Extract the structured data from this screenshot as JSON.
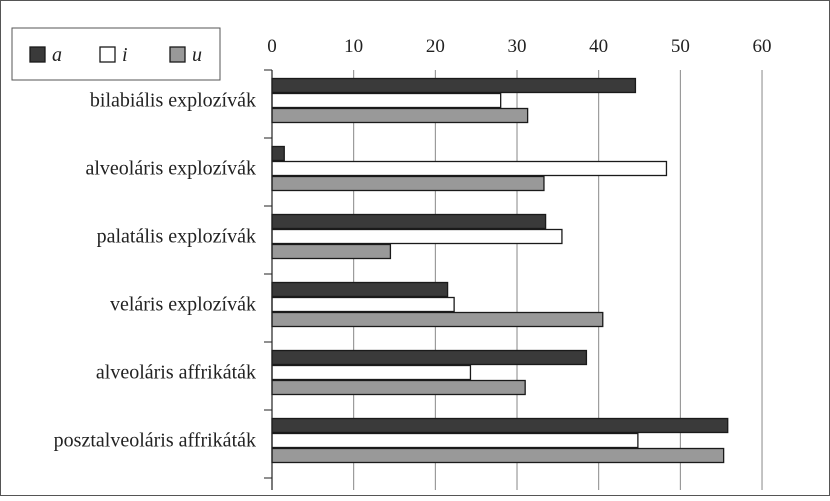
{
  "chart_data": {
    "type": "bar",
    "orientation": "horizontal",
    "categories": [
      "bilabiális explozívák",
      "alveoláris explozívák",
      "palatális explozívák",
      "veláris explozívák",
      "alveoláris affrikáták",
      "posztalveoláris affrikáták"
    ],
    "series": [
      {
        "name": "a",
        "color": "#3a3a3a",
        "values": [
          44.5,
          1.5,
          33.5,
          21.5,
          38.5,
          55.8
        ]
      },
      {
        "name": "i",
        "color": "#ffffff",
        "values": [
          28,
          48.3,
          35.5,
          22.3,
          24.3,
          44.8
        ]
      },
      {
        "name": "u",
        "color": "#999999",
        "values": [
          31.3,
          33.3,
          14.5,
          40.5,
          31,
          55.3
        ]
      }
    ],
    "xlim": [
      0,
      60
    ],
    "xticks": [
      "0",
      "10",
      "20",
      "30",
      "40",
      "50",
      "60"
    ],
    "grid": "vertical",
    "legend_position": "top-left",
    "bar_stroke": "#1a1a1a"
  }
}
